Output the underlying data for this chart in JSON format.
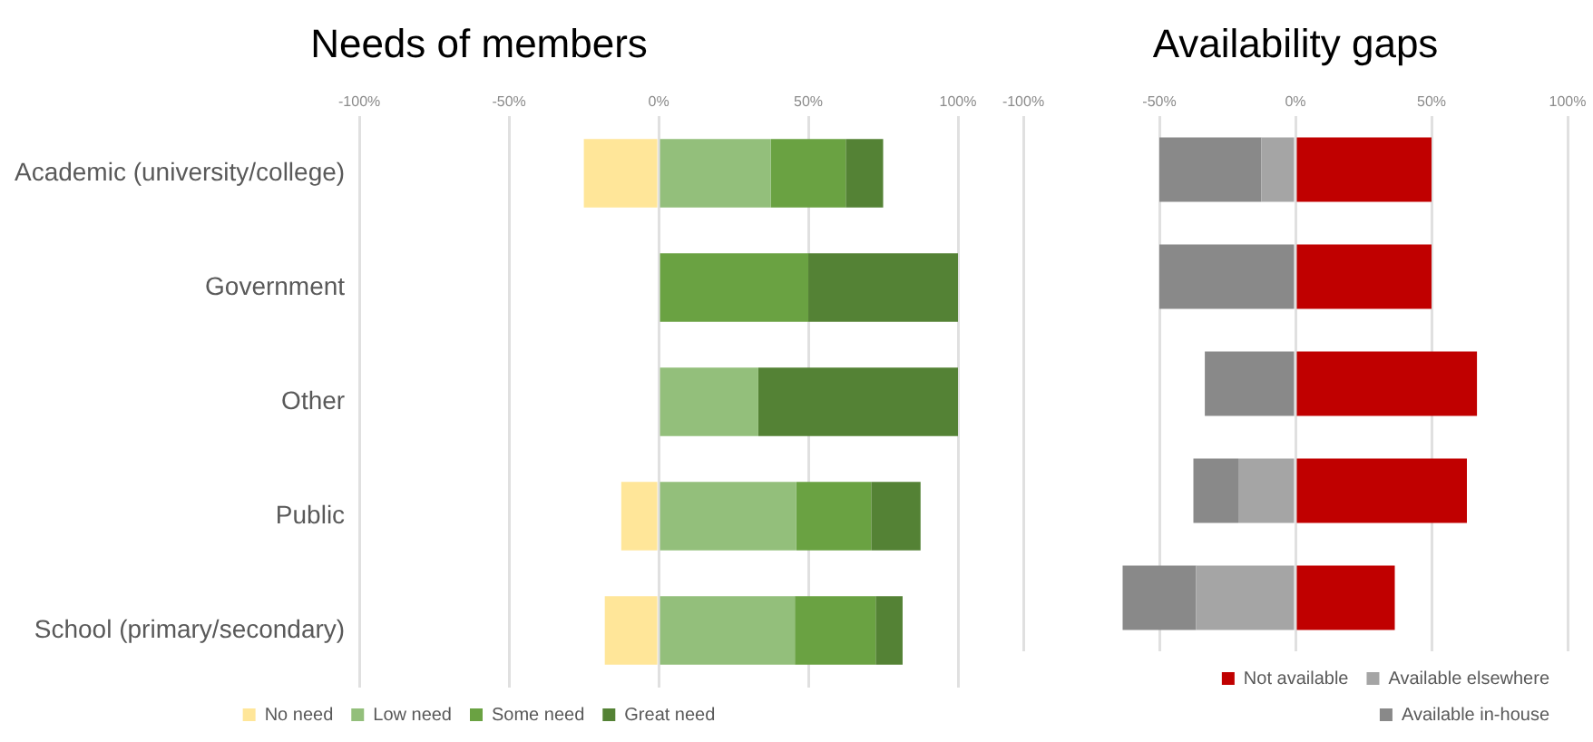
{
  "chart_data": [
    {
      "type": "bar",
      "title": "Needs of members",
      "orientation": "horizontal",
      "stacked": true,
      "categories": [
        "Academic (university/college)",
        "Government",
        "Other",
        "Public",
        "School (primary/secondary)"
      ],
      "series": [
        {
          "name": "No need",
          "color": "#ffe699",
          "values": [
            -25,
            0,
            0,
            -12.5,
            -18
          ]
        },
        {
          "name": "Low need",
          "color": "#93bf7b",
          "values": [
            37.5,
            0,
            33.3,
            46,
            45.5
          ]
        },
        {
          "name": "Some need",
          "color": "#6aa242",
          "values": [
            25,
            50,
            0,
            25,
            27
          ]
        },
        {
          "name": "Great need",
          "color": "#548235",
          "values": [
            12.5,
            50,
            66.7,
            16.5,
            9
          ]
        }
      ],
      "xlim": [
        -100,
        100
      ],
      "xticks": [
        {
          "value": -100,
          "label": "-100%"
        },
        {
          "value": -50,
          "label": "-50%"
        },
        {
          "value": 0,
          "label": "0%"
        },
        {
          "value": 50,
          "label": "50%"
        },
        {
          "value": 100,
          "label": "100%"
        }
      ],
      "grid": "x",
      "legend": "bottom"
    },
    {
      "type": "bar",
      "title": "Availability gaps",
      "orientation": "horizontal",
      "stacked": true,
      "categories": [
        null,
        null,
        null,
        null,
        null
      ],
      "series": [
        {
          "name": "Not available",
          "color": "#c00000",
          "values": [
            50,
            50,
            66.7,
            63,
            36.5
          ]
        },
        {
          "name": "Available elsewhere",
          "color": "#a5a5a5",
          "values": [
            -12.5,
            0,
            0,
            -21,
            -36.5
          ]
        },
        {
          "name": "Available in-house",
          "color": "#898989",
          "values": [
            -37.5,
            -50,
            -33.3,
            -16.5,
            -27
          ]
        }
      ],
      "xlim": [
        -100,
        100
      ],
      "xticks": [
        {
          "value": -100,
          "label": "-100%"
        },
        {
          "value": -50,
          "label": "-50%"
        },
        {
          "value": 0,
          "label": "0%"
        },
        {
          "value": 50,
          "label": "50%"
        },
        {
          "value": 100,
          "label": "100%"
        }
      ],
      "grid": "x",
      "legend": "bottom",
      "tick_labels": "x"
    }
  ]
}
